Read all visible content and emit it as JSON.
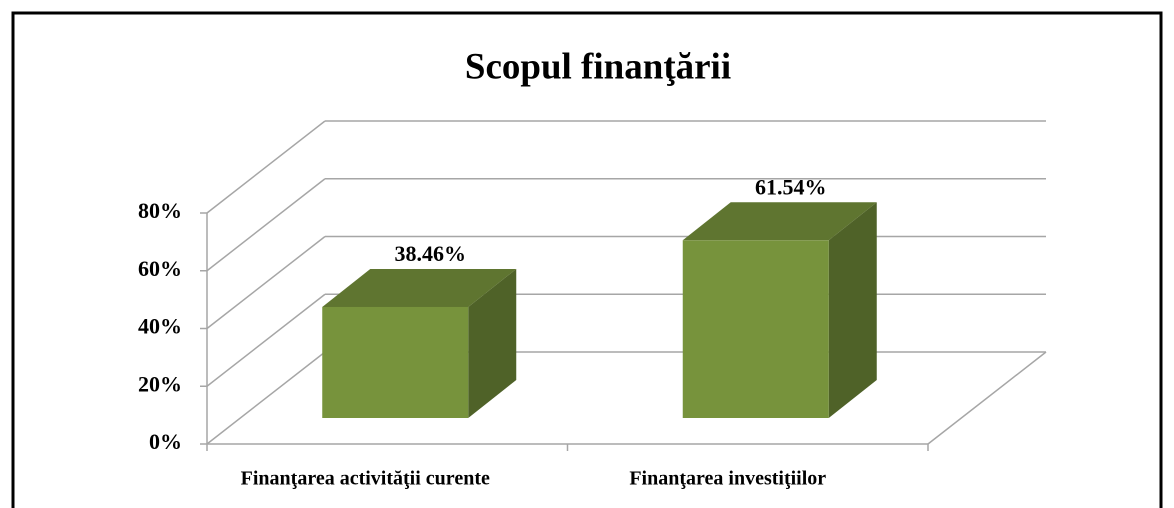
{
  "chart_data": {
    "type": "bar3d",
    "title": "Scopul finanţării",
    "categories": [
      "Finanţarea activităţii curente",
      "Finanţarea investiţiilor"
    ],
    "values": [
      38.46,
      61.54
    ],
    "value_labels": [
      "38.46%",
      "61.54%"
    ],
    "color": "#77933c",
    "ylim": [
      0,
      80
    ],
    "yticks": [
      {
        "value": 0,
        "label": "0%"
      },
      {
        "value": 20,
        "label": "20%"
      },
      {
        "value": 40,
        "label": "40%"
      },
      {
        "value": 60,
        "label": "60%"
      },
      {
        "value": 80,
        "label": "80%"
      }
    ],
    "grid": true
  }
}
